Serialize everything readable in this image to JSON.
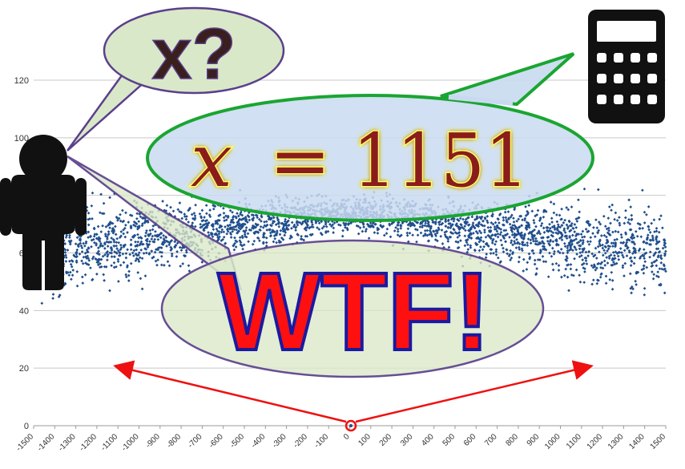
{
  "chart_data": {
    "type": "scatter",
    "title": "",
    "xlabel": "",
    "ylabel": "",
    "xlim": [
      -1500,
      1500
    ],
    "ylim": [
      0,
      120
    ],
    "x_ticks": [
      -1500,
      -1400,
      -1300,
      -1200,
      -1100,
      -1000,
      -900,
      -800,
      -700,
      -600,
      -500,
      -400,
      -300,
      -200,
      -100,
      0,
      100,
      200,
      300,
      400,
      500,
      600,
      700,
      800,
      900,
      1000,
      1100,
      1200,
      1300,
      1400,
      1500
    ],
    "y_ticks": [
      0,
      20,
      40,
      60,
      80,
      100,
      120
    ],
    "grid": "horizontal",
    "marker_color": "#1f4e8c",
    "point_count_estimate": 3000,
    "trend": "points cluster between 40 and 100; band narrows upward near x=0 (around 60–90) and widens toward both ends (about 20–100)",
    "highlighted_point": {
      "x": 0,
      "y": 0
    }
  },
  "bubbles": {
    "question": "x?",
    "equation": {
      "var": "x",
      "op": "=",
      "value": "1151"
    },
    "exclaim": "WTF!"
  },
  "icons": [
    "person-icon",
    "calculator-icon"
  ],
  "colors": {
    "question_bubble_fill": "#d9e8c8",
    "bubble_outline": "#5b3f8c",
    "equation_fill": "#c9daf0",
    "equation_outline": "#1aa532",
    "equation_text": "#8b1a1a",
    "equation_glow": "#ffff66",
    "wtf_fill": "#ff1010",
    "wtf_outline": "#1a1aa0",
    "arrow": "#ee1111",
    "icon": "#111111"
  }
}
